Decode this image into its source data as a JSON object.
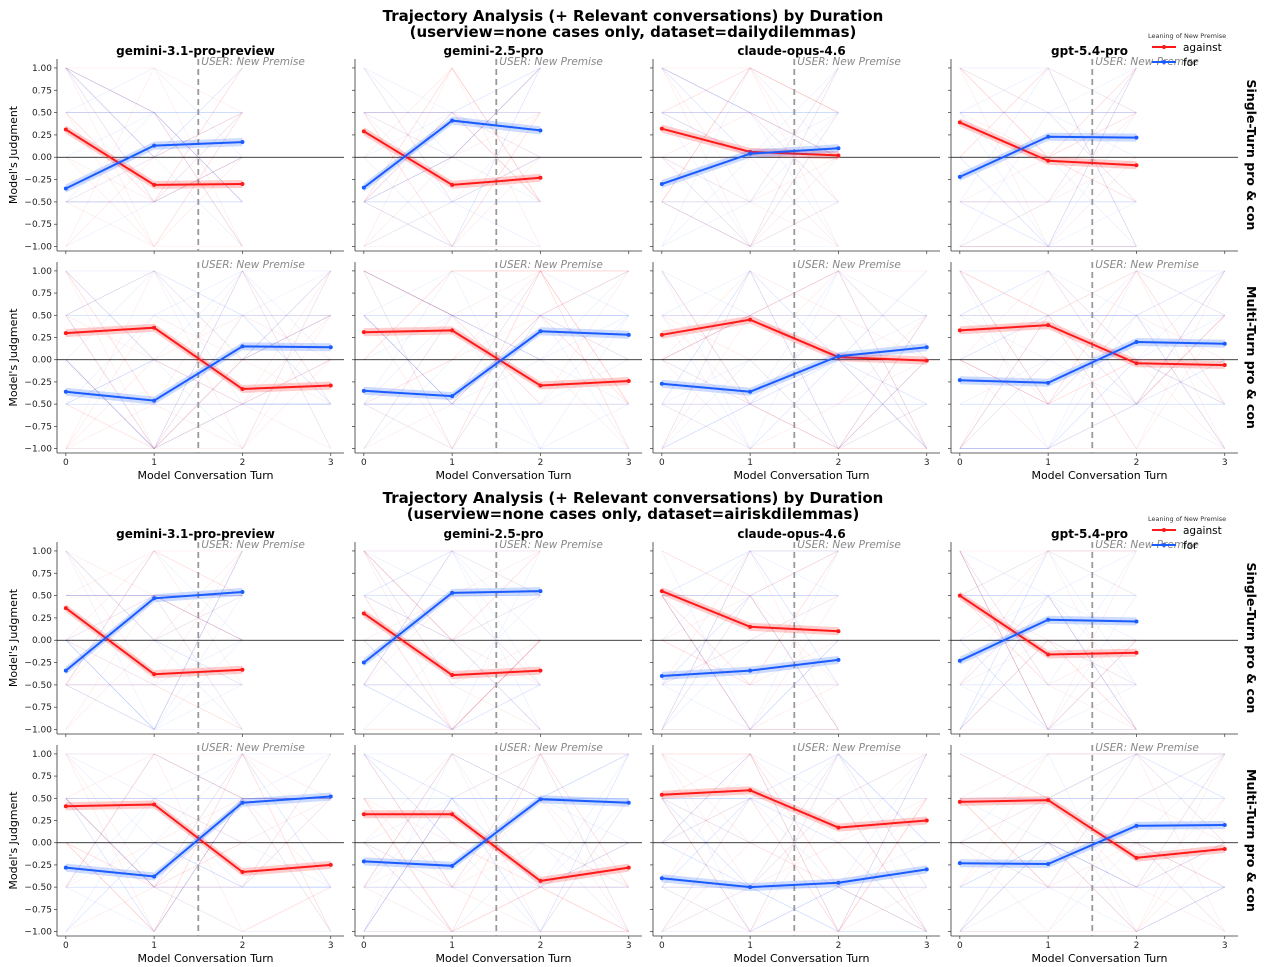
{
  "colors": {
    "against": "#ff1a1a",
    "for": "#1a5cff",
    "divider": "#999999"
  },
  "x_ticks": [
    "0",
    "1",
    "2",
    "3"
  ],
  "y_ticks": [
    "1.00",
    "0.75",
    "0.50",
    "0.25",
    "0.00",
    "−0.25",
    "−0.50",
    "−0.75",
    "−1.00"
  ],
  "ylim": [
    -1.05,
    1.1
  ],
  "xlim": [
    -0.1,
    3.15
  ],
  "ylabel": "Model's Judgment",
  "xlabel": "Model Conversation Turn",
  "premise_label": "USER: New Premise",
  "premise_x": 1.5,
  "legend": {
    "title": "Leaning of New Premise",
    "items": [
      "against",
      "for"
    ]
  },
  "row_labels": [
    "Single-Turn pro & con",
    "Multi-Turn pro & con"
  ],
  "chart_data": [
    {
      "type": "line",
      "title_lines": [
        "Trajectory Analysis (+ Relevant conversations) by Duration",
        "(userview=none cases only, dataset=dailydilemmas)"
      ],
      "models": [
        "gemini-3.1-pro-preview",
        "gemini-2.5-pro",
        "claude-opus-4.6",
        "gpt-5.4-pro"
      ],
      "rows": [
        {
          "label": "Single-Turn pro & con",
          "panels": [
            {
              "against": [
                [
                  0,
                  0.31
                ],
                [
                  1,
                  -0.31
                ],
                [
                  2,
                  -0.3
                ]
              ],
              "for": [
                [
                  0,
                  -0.35
                ],
                [
                  1,
                  0.13
                ],
                [
                  2,
                  0.17
                ]
              ]
            },
            {
              "against": [
                [
                  0,
                  0.29
                ],
                [
                  1,
                  -0.31
                ],
                [
                  2,
                  -0.23
                ]
              ],
              "for": [
                [
                  0,
                  -0.34
                ],
                [
                  1,
                  0.41
                ],
                [
                  2,
                  0.3
                ]
              ]
            },
            {
              "against": [
                [
                  0,
                  0.32
                ],
                [
                  1,
                  0.06
                ],
                [
                  2,
                  0.02
                ]
              ],
              "for": [
                [
                  0,
                  -0.3
                ],
                [
                  1,
                  0.04
                ],
                [
                  2,
                  0.1
                ]
              ]
            },
            {
              "against": [
                [
                  0,
                  0.39
                ],
                [
                  1,
                  -0.04
                ],
                [
                  2,
                  -0.09
                ]
              ],
              "for": [
                [
                  0,
                  -0.22
                ],
                [
                  1,
                  0.23
                ],
                [
                  2,
                  0.22
                ]
              ]
            }
          ]
        },
        {
          "label": "Multi-Turn pro & con",
          "panels": [
            {
              "against": [
                [
                  0,
                  0.3
                ],
                [
                  1,
                  0.36
                ],
                [
                  2,
                  -0.33
                ],
                [
                  3,
                  -0.29
                ]
              ],
              "for": [
                [
                  0,
                  -0.36
                ],
                [
                  1,
                  -0.46
                ],
                [
                  2,
                  0.15
                ],
                [
                  3,
                  0.14
                ]
              ]
            },
            {
              "against": [
                [
                  0,
                  0.31
                ],
                [
                  1,
                  0.33
                ],
                [
                  2,
                  -0.29
                ],
                [
                  3,
                  -0.24
                ]
              ],
              "for": [
                [
                  0,
                  -0.35
                ],
                [
                  1,
                  -0.41
                ],
                [
                  2,
                  0.32
                ],
                [
                  3,
                  0.28
                ]
              ]
            },
            {
              "against": [
                [
                  0,
                  0.28
                ],
                [
                  1,
                  0.45
                ],
                [
                  2,
                  0.03
                ],
                [
                  3,
                  -0.01
                ]
              ],
              "for": [
                [
                  0,
                  -0.27
                ],
                [
                  1,
                  -0.36
                ],
                [
                  2,
                  0.04
                ],
                [
                  3,
                  0.14
                ]
              ]
            },
            {
              "against": [
                [
                  0,
                  0.33
                ],
                [
                  1,
                  0.39
                ],
                [
                  2,
                  -0.04
                ],
                [
                  3,
                  -0.06
                ]
              ],
              "for": [
                [
                  0,
                  -0.23
                ],
                [
                  1,
                  -0.26
                ],
                [
                  2,
                  0.2
                ],
                [
                  3,
                  0.18
                ]
              ]
            }
          ]
        }
      ]
    },
    {
      "type": "line",
      "title_lines": [
        "Trajectory Analysis (+ Relevant conversations) by Duration",
        "(userview=none cases only, dataset=airiskdilemmas)"
      ],
      "models": [
        "gemini-3.1-pro-preview",
        "gemini-2.5-pro",
        "claude-opus-4.6",
        "gpt-5.4-pro"
      ],
      "rows": [
        {
          "label": "Single-Turn pro & con",
          "panels": [
            {
              "against": [
                [
                  0,
                  0.36
                ],
                [
                  1,
                  -0.38
                ],
                [
                  2,
                  -0.33
                ]
              ],
              "for": [
                [
                  0,
                  -0.34
                ],
                [
                  1,
                  0.47
                ],
                [
                  2,
                  0.54
                ]
              ]
            },
            {
              "against": [
                [
                  0,
                  0.3
                ],
                [
                  1,
                  -0.39
                ],
                [
                  2,
                  -0.34
                ]
              ],
              "for": [
                [
                  0,
                  -0.25
                ],
                [
                  1,
                  0.53
                ],
                [
                  2,
                  0.55
                ]
              ]
            },
            {
              "against": [
                [
                  0,
                  0.55
                ],
                [
                  1,
                  0.15
                ],
                [
                  2,
                  0.1
                ]
              ],
              "for": [
                [
                  0,
                  -0.4
                ],
                [
                  1,
                  -0.34
                ],
                [
                  2,
                  -0.22
                ]
              ]
            },
            {
              "against": [
                [
                  0,
                  0.5
                ],
                [
                  1,
                  -0.16
                ],
                [
                  2,
                  -0.14
                ]
              ],
              "for": [
                [
                  0,
                  -0.23
                ],
                [
                  1,
                  0.23
                ],
                [
                  2,
                  0.21
                ]
              ]
            }
          ]
        },
        {
          "label": "Multi-Turn pro & con",
          "panels": [
            {
              "against": [
                [
                  0,
                  0.41
                ],
                [
                  1,
                  0.43
                ],
                [
                  2,
                  -0.33
                ],
                [
                  3,
                  -0.25
                ]
              ],
              "for": [
                [
                  0,
                  -0.28
                ],
                [
                  1,
                  -0.38
                ],
                [
                  2,
                  0.45
                ],
                [
                  3,
                  0.52
                ]
              ]
            },
            {
              "against": [
                [
                  0,
                  0.32
                ],
                [
                  1,
                  0.32
                ],
                [
                  2,
                  -0.43
                ],
                [
                  3,
                  -0.28
                ]
              ],
              "for": [
                [
                  0,
                  -0.21
                ],
                [
                  1,
                  -0.26
                ],
                [
                  2,
                  0.49
                ],
                [
                  3,
                  0.45
                ]
              ]
            },
            {
              "against": [
                [
                  0,
                  0.54
                ],
                [
                  1,
                  0.59
                ],
                [
                  2,
                  0.17
                ],
                [
                  3,
                  0.25
                ]
              ],
              "for": [
                [
                  0,
                  -0.4
                ],
                [
                  1,
                  -0.5
                ],
                [
                  2,
                  -0.45
                ],
                [
                  3,
                  -0.3
                ]
              ]
            },
            {
              "against": [
                [
                  0,
                  0.46
                ],
                [
                  1,
                  0.48
                ],
                [
                  2,
                  -0.17
                ],
                [
                  3,
                  -0.07
                ]
              ],
              "for": [
                [
                  0,
                  -0.23
                ],
                [
                  1,
                  -0.24
                ],
                [
                  2,
                  0.19
                ],
                [
                  3,
                  0.2
                ]
              ]
            }
          ]
        }
      ]
    }
  ]
}
